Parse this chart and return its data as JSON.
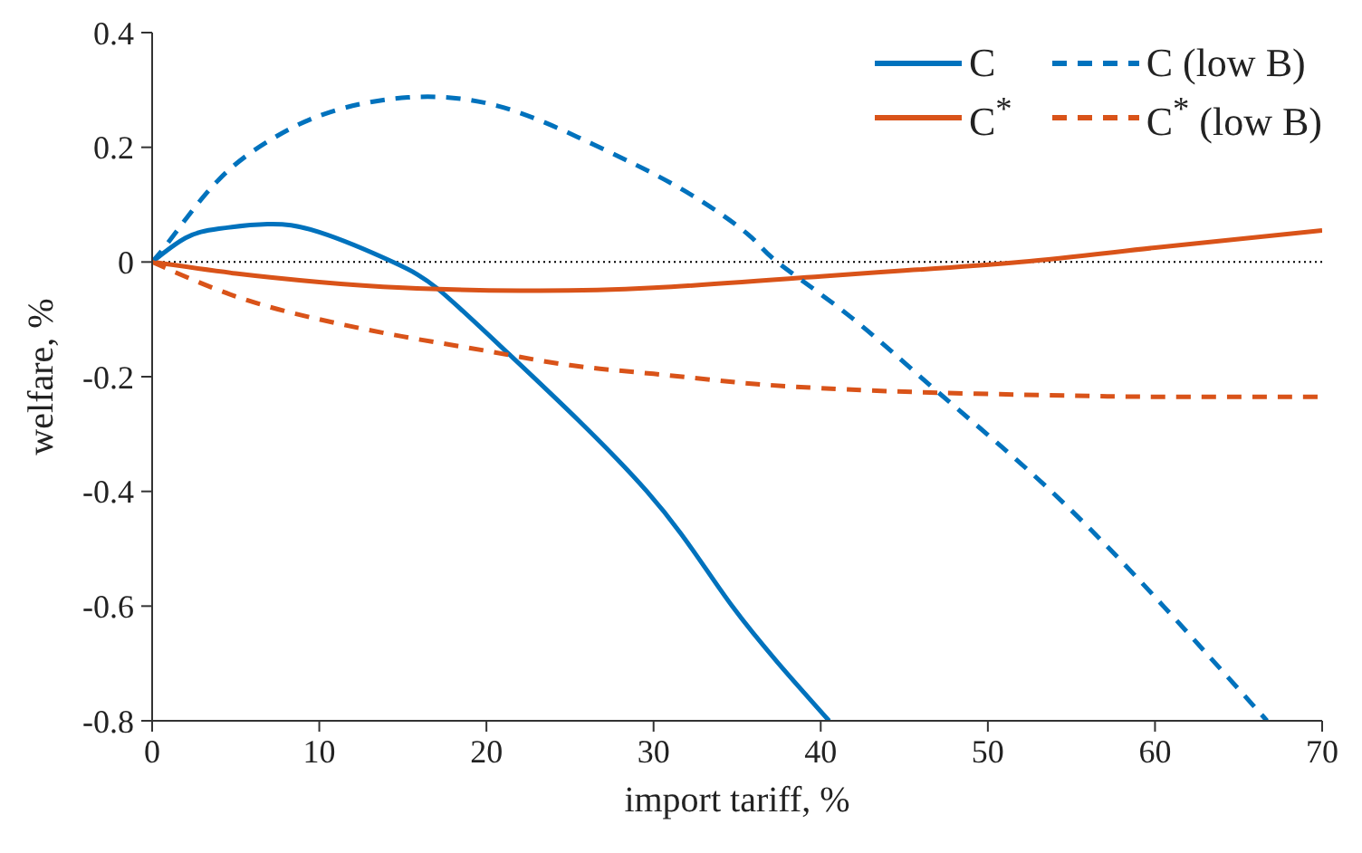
{
  "chart_data": {
    "type": "line",
    "xlabel": "import tariff, %",
    "ylabel": "welfare, %",
    "xlim": [
      0,
      70
    ],
    "xticks": [
      0,
      10,
      20,
      30,
      40,
      50,
      60,
      70
    ],
    "ylim": [
      -0.8,
      0.4
    ],
    "yticks": [
      -0.8,
      -0.6,
      -0.4,
      -0.2,
      0,
      0.2,
      0.4
    ],
    "grid": false,
    "legend": "top right",
    "marker": "none",
    "ref_lines": [
      {
        "axis": "y",
        "value": 0,
        "color": "#000000",
        "line_style": "dotted"
      }
    ],
    "series": [
      {
        "name": "C",
        "color": "#0072bd",
        "line_style": "solid",
        "x": [
          0,
          2,
          4,
          6.9,
          10,
          14.4,
          17.1,
          21.4,
          29.6,
          34.7,
          40.5
        ],
        "values": [
          0,
          0.042,
          0.058,
          0.066,
          0.052,
          0,
          -0.047,
          -0.162,
          -0.4,
          -0.6,
          -0.8
        ]
      },
      {
        "name": "C$^{*}$",
        "color": "#d95319",
        "line_style": "solid",
        "x": [
          0,
          5,
          10,
          15,
          22,
          30,
          40,
          45,
          52,
          60,
          70
        ],
        "values": [
          0,
          -0.02,
          -0.035,
          -0.045,
          -0.05,
          -0.045,
          -0.025,
          -0.015,
          0,
          0.025,
          0.055
        ]
      },
      {
        "name": "C  (low B)",
        "color": "#0072bd",
        "line_style": "dashed",
        "x": [
          0,
          1.3,
          4,
          7.2,
          10.6,
          15.3,
          20.7,
          26.4,
          31.8,
          35.7,
          37.4,
          41.8,
          46.9,
          53.8,
          60.5,
          66.7
        ],
        "values": [
          0,
          0.047,
          0.144,
          0.215,
          0.261,
          0.287,
          0.272,
          0.205,
          0.125,
          0.047,
          0,
          -0.096,
          -0.224,
          -0.4,
          -0.6,
          -0.8
        ]
      },
      {
        "name": "C$^{*}$ (low B)",
        "color": "#d95319",
        "line_style": "dashed",
        "x": [
          0,
          5,
          10,
          15,
          20,
          25,
          30,
          35,
          40,
          47,
          55,
          60,
          70
        ],
        "values": [
          0,
          -0.06,
          -0.1,
          -0.13,
          -0.155,
          -0.18,
          -0.195,
          -0.21,
          -0.22,
          -0.228,
          -0.233,
          -0.235,
          -0.235
        ]
      }
    ]
  }
}
